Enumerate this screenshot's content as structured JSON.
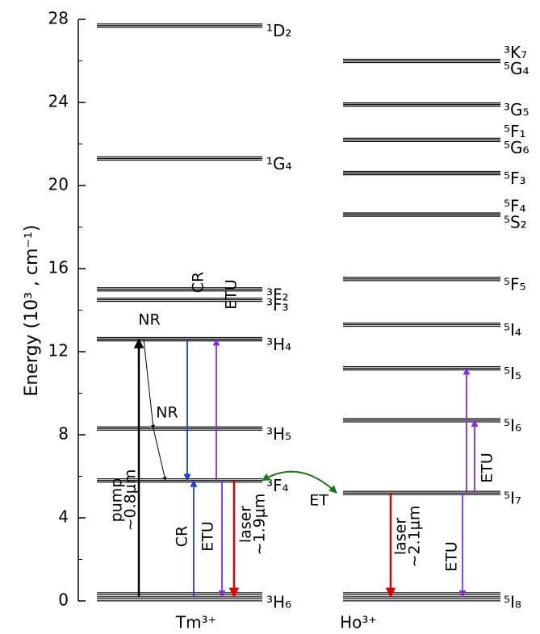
{
  "chart_data": {
    "type": "energy-levels",
    "y_label": "Energy (10³ , cm⁻¹)",
    "ylim": [
      0,
      28
    ],
    "yticks": [
      0,
      4,
      8,
      12,
      16,
      20,
      24,
      28
    ],
    "ions": [
      {
        "name": "Tm³⁺",
        "levels": [
          {
            "labels": [
              "³H₆"
            ],
            "energy": 0.2
          },
          {
            "labels": [
              "³F₄"
            ],
            "energy": 5.8
          },
          {
            "labels": [
              "³H₅"
            ],
            "energy": 8.3
          },
          {
            "labels": [
              "³H₄"
            ],
            "energy": 12.6
          },
          {
            "labels": [
              "³F₃"
            ],
            "energy": 14.5
          },
          {
            "labels": [
              "³F₂"
            ],
            "energy": 15.0
          },
          {
            "labels": [
              "¹G₄"
            ],
            "energy": 21.3
          },
          {
            "labels": [
              "¹D₂"
            ],
            "energy": 27.7
          }
        ]
      },
      {
        "name": "Ho³⁺",
        "levels": [
          {
            "labels": [
              "⁵I₈"
            ],
            "energy": 0.2
          },
          {
            "labels": [
              "⁵I₇"
            ],
            "energy": 5.2
          },
          {
            "labels": [
              "⁵I₆"
            ],
            "energy": 8.7
          },
          {
            "labels": [
              "⁵I₅"
            ],
            "energy": 11.2
          },
          {
            "labels": [
              "⁵I₄"
            ],
            "energy": 13.3
          },
          {
            "labels": [
              "⁵F₅"
            ],
            "energy": 15.5
          },
          {
            "labels": [
              "⁵F₄",
              "⁵S₂"
            ],
            "energy": 18.6
          },
          {
            "labels": [
              "⁵F₃"
            ],
            "energy": 20.6
          },
          {
            "labels": [
              "⁵F₁",
              "⁵G₆"
            ],
            "energy": 22.2
          },
          {
            "labels": [
              "³G₅"
            ],
            "energy": 23.9
          },
          {
            "labels": [
              "³K₇",
              "⁵G₄"
            ],
            "energy": 26.0
          }
        ]
      }
    ],
    "transitions": [
      {
        "label": [
          "pump",
          "~0.8μm"
        ],
        "from": 0.2,
        "to": 12.6,
        "color": "#000000"
      },
      {
        "label": [
          "NR"
        ],
        "from": 12.6,
        "to": 8.3,
        "color": "#000000"
      },
      {
        "label": [
          "NR"
        ],
        "from": 8.3,
        "to": 5.8,
        "color": "#000000"
      },
      {
        "label": [
          "CR"
        ],
        "from": 12.6,
        "to": 5.8,
        "color": "#1a3fd6"
      },
      {
        "label": [
          "CR"
        ],
        "from": 0.2,
        "to": 5.8,
        "color": "#1a3fd6"
      },
      {
        "label": [
          "ETU"
        ],
        "from": 5.8,
        "to": 12.6,
        "color": "#8a2be2"
      },
      {
        "label": [
          "ETU"
        ],
        "from": 5.8,
        "to": 0.2,
        "color": "#8a2be2"
      },
      {
        "label": [
          "laser",
          "~1.9μm"
        ],
        "from": 5.8,
        "to": 0.2,
        "color": "#e00000"
      },
      {
        "label": [
          "ET"
        ],
        "from": 5.8,
        "to": 5.2,
        "color": "#1a7a1a"
      },
      {
        "label": [
          "laser",
          "~2.1μm"
        ],
        "from": 5.2,
        "to": 0.2,
        "color": "#e00000"
      },
      {
        "label": [
          "ETU"
        ],
        "from": 5.2,
        "to": 0.2,
        "color": "#8a2be2"
      },
      {
        "from": 5.2,
        "to": 11.2,
        "color": "#8a2be2"
      },
      {
        "label": [
          "ETU"
        ],
        "from": 5.2,
        "to": 8.7,
        "color": "#8a2be2"
      }
    ]
  }
}
